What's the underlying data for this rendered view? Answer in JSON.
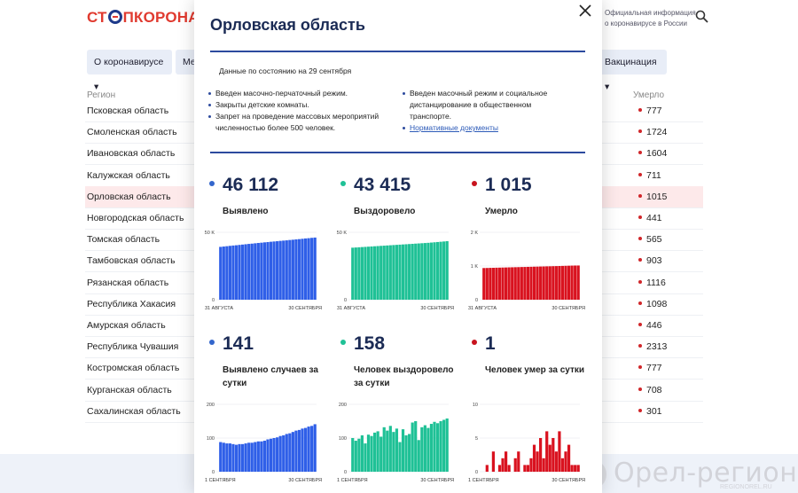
{
  "header": {
    "logo_red_1": "СТ",
    "logo_red_2": "ПКОРОНАВИ",
    "official_line1": "Официальная информация",
    "official_line2": "о коронавирусе в России"
  },
  "nav": {
    "item1": "О коронавирусе",
    "item2": "Ме",
    "item3": "Вакцинация"
  },
  "table": {
    "col_region": "Регион",
    "col_died": "Умерло",
    "rows": [
      {
        "name": "Псковская область",
        "died": "777"
      },
      {
        "name": "Смоленская область",
        "died": "1724"
      },
      {
        "name": "Ивановская область",
        "died": "1604"
      },
      {
        "name": "Калужская область",
        "died": "711"
      },
      {
        "name": "Орловская область",
        "died": "1015"
      },
      {
        "name": "Новгородская область",
        "died": "441"
      },
      {
        "name": "Томская область",
        "died": "565"
      },
      {
        "name": "Тамбовская область",
        "died": "903"
      },
      {
        "name": "Рязанская область",
        "died": "1116"
      },
      {
        "name": "Республика Хакасия",
        "died": "1098"
      },
      {
        "name": "Амурская область",
        "died": "446"
      },
      {
        "name": "Республика Чувашия",
        "died": "2313"
      },
      {
        "name": "Костромская область",
        "died": "777"
      },
      {
        "name": "Курганская область",
        "died": "708"
      },
      {
        "name": "Сахалинская область",
        "died": "301"
      }
    ]
  },
  "watermark": {
    "text": "Орел-регион",
    "sub": "REGIONOREL.RU"
  },
  "modal": {
    "title": "Орловская область",
    "date": "Данные по состоянию на 29 сентября",
    "measures_left": [
      "Введен масочно-перчаточный режим.",
      "Закрыты детские комнаты.",
      "Запрет на проведение массовых мероприятий численностью более 500 человек."
    ],
    "measures_right": [
      "Введен масочный режим и социальное дистанцирование в общественном транспорте."
    ],
    "docs_link": "Нормативные документы",
    "colors": {
      "blue": "#2f5fe8",
      "green": "#1fc196",
      "red": "#d9121f",
      "dark": "#1b2b55"
    },
    "stats": [
      {
        "value": "46 112",
        "label": "Выявлено",
        "color": "#3366cc"
      },
      {
        "value": "43 415",
        "label": "Выздоровело",
        "color": "#1fc196"
      },
      {
        "value": "1 015",
        "label": "Умерло",
        "color": "#c8141e"
      },
      {
        "value": "141",
        "label": "Выявлено случаев за сутки",
        "color": "#3366cc"
      },
      {
        "value": "158",
        "label": "Человек выздоровело за сутки",
        "color": "#1fc196"
      },
      {
        "value": "1",
        "label": "Человек умер за сутки",
        "color": "#c8141e"
      }
    ]
  },
  "chart_data": [
    {
      "type": "bar",
      "title": "Выявлено",
      "yticks": [
        "50 K",
        "0"
      ],
      "ylim": [
        0,
        50000
      ],
      "xlabels": [
        "31 АВГУСТА",
        "30 СЕНТЯБРЯ"
      ],
      "color": "#2f5fe8",
      "values": [
        39200,
        39450,
        39700,
        39950,
        40200,
        40400,
        40650,
        40900,
        41150,
        41400,
        41600,
        41850,
        42100,
        42300,
        42550,
        42750,
        43000,
        43200,
        43400,
        43650,
        43850,
        44050,
        44300,
        44500,
        44750,
        44950,
        45200,
        45450,
        45650,
        45900,
        46112
      ]
    },
    {
      "type": "bar",
      "title": "Выздоровело",
      "yticks": [
        "50 K",
        "0"
      ],
      "ylim": [
        0,
        50000
      ],
      "xlabels": [
        "31 АВГУСТА",
        "30 СЕНТЯБРЯ"
      ],
      "color": "#1fc196",
      "values": [
        38600,
        38750,
        38900,
        39050,
        39200,
        39350,
        39500,
        39650,
        39800,
        39950,
        40100,
        40250,
        40400,
        40550,
        40700,
        40850,
        41000,
        41150,
        41300,
        41450,
        41600,
        41750,
        41900,
        42050,
        42200,
        42400,
        42600,
        42800,
        43000,
        43200,
        43415
      ]
    },
    {
      "type": "bar",
      "title": "Умерло",
      "yticks": [
        "2 K",
        "1 K",
        "0"
      ],
      "ylim": [
        0,
        2000
      ],
      "xlabels": [
        "31 АВГУСТА",
        "30 СЕНТЯБРЯ"
      ],
      "color": "#d9121f",
      "values": [
        940,
        942,
        945,
        947,
        950,
        952,
        955,
        957,
        960,
        962,
        965,
        967,
        970,
        972,
        975,
        977,
        980,
        982,
        985,
        987,
        990,
        992,
        995,
        997,
        1000,
        1003,
        1006,
        1009,
        1012,
        1014,
        1015
      ]
    },
    {
      "type": "bar",
      "title": "Выявлено случаев за сутки",
      "yticks": [
        "200",
        "100",
        "0"
      ],
      "ylim": [
        0,
        200
      ],
      "xlabels": [
        "1 СЕНТЯБРЯ",
        "30 СЕНТЯБРЯ"
      ],
      "color": "#2f5fe8",
      "values": [
        88,
        86,
        84,
        84,
        82,
        80,
        82,
        82,
        84,
        86,
        86,
        88,
        90,
        90,
        92,
        96,
        98,
        100,
        102,
        106,
        108,
        112,
        114,
        118,
        122,
        124,
        128,
        130,
        134,
        136,
        141
      ]
    },
    {
      "type": "bar",
      "title": "Человек выздоровело за сутки",
      "yticks": [
        "200",
        "100",
        "0"
      ],
      "ylim": [
        0,
        200
      ],
      "xlabels": [
        "1 СЕНТЯБРЯ",
        "30 СЕНТЯБРЯ"
      ],
      "color": "#1fc196",
      "values": [
        100,
        92,
        98,
        108,
        84,
        110,
        106,
        116,
        120,
        104,
        132,
        122,
        136,
        118,
        128,
        88,
        126,
        108,
        112,
        146,
        150,
        94,
        132,
        138,
        130,
        142,
        148,
        144,
        150,
        154,
        158
      ]
    },
    {
      "type": "bar",
      "title": "Человек умер за сутки",
      "yticks": [
        "10",
        "5",
        "0"
      ],
      "ylim": [
        0,
        10
      ],
      "xlabels": [
        "1 СЕНТЯБРЯ",
        "30 СЕНТЯБРЯ"
      ],
      "color": "#d9121f",
      "values": [
        0,
        1,
        0,
        3,
        0,
        1,
        2,
        3,
        1,
        0,
        2,
        3,
        0,
        1,
        1,
        2,
        4,
        3,
        5,
        2,
        6,
        4,
        5,
        3,
        6,
        2,
        3,
        4,
        1,
        1,
        1
      ]
    }
  ]
}
